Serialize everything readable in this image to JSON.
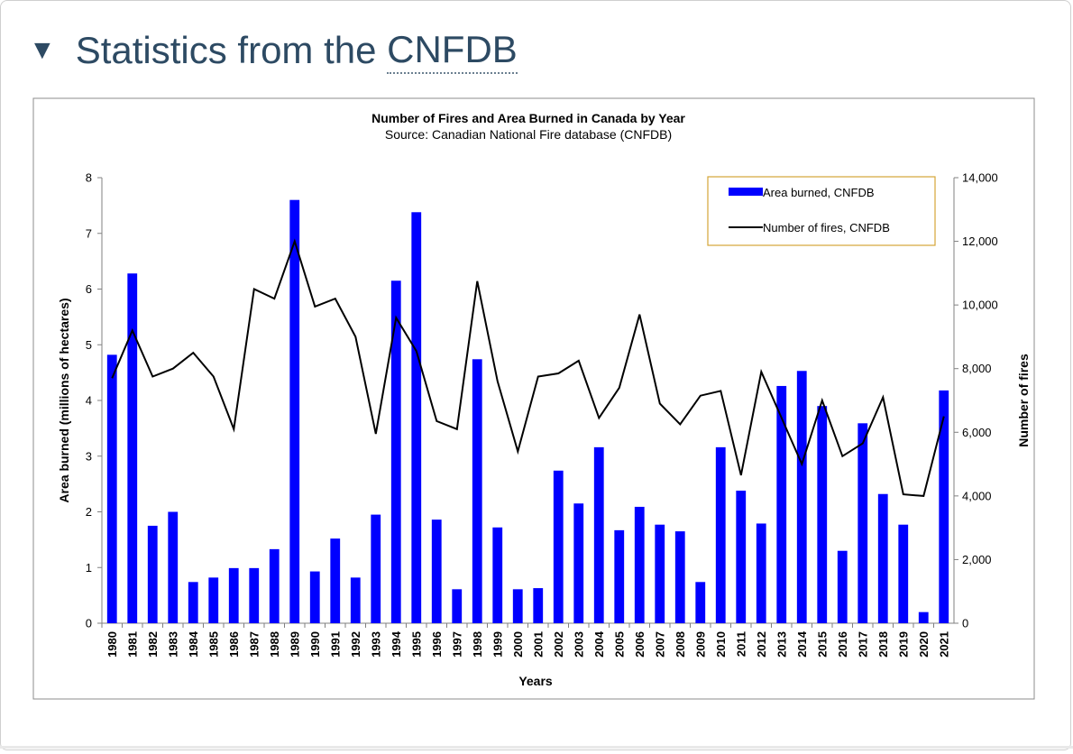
{
  "section": {
    "toggle_icon": "triangle-down-icon",
    "title_prefix": "Statistics from the ",
    "title_link": "CNFDB"
  },
  "chart_data": {
    "type": "bar+line",
    "title": "Number of Fires and Area Burned in Canada by Year",
    "subtitle": "Source: Canadian National Fire database (CNFDB)",
    "xlabel": "Years",
    "ylabel_left": "Area burned (millions of hectares)",
    "ylabel_right": "Number of fires",
    "ylim_left": [
      0,
      8
    ],
    "ylim_right": [
      0,
      14000
    ],
    "left_ticks": [
      "0",
      "1",
      "2",
      "3",
      "4",
      "5",
      "6",
      "7",
      "8"
    ],
    "right_ticks": [
      "0",
      "2,000",
      "4,000",
      "6,000",
      "8,000",
      "10,000",
      "12,000",
      "14,000"
    ],
    "legend_position": "top-right",
    "categories": [
      "1980",
      "1981",
      "1982",
      "1983",
      "1984",
      "1985",
      "1986",
      "1987",
      "1988",
      "1989",
      "1990",
      "1991",
      "1992",
      "1993",
      "1994",
      "1995",
      "1996",
      "1997",
      "1998",
      "1999",
      "2000",
      "2001",
      "2002",
      "2003",
      "2004",
      "2005",
      "2006",
      "2007",
      "2008",
      "2009",
      "2010",
      "2011",
      "2012",
      "2013",
      "2014",
      "2015",
      "2016",
      "2017",
      "2018",
      "2019",
      "2020",
      "2021"
    ],
    "series": [
      {
        "name": "Area burned, CNFDB",
        "type": "bar",
        "axis": "left",
        "color": "#0000ff",
        "values": [
          4.82,
          6.28,
          1.75,
          2.0,
          0.74,
          0.82,
          0.99,
          0.99,
          1.33,
          7.6,
          0.93,
          1.52,
          0.82,
          1.95,
          6.15,
          7.38,
          1.86,
          0.61,
          4.74,
          1.72,
          0.61,
          0.63,
          2.74,
          2.15,
          3.16,
          1.67,
          2.09,
          1.77,
          1.65,
          0.74,
          3.16,
          2.38,
          1.79,
          4.26,
          4.53,
          3.9,
          1.3,
          3.59,
          2.32,
          1.77,
          0.2,
          4.18
        ]
      },
      {
        "name": "Number of fires, CNFDB",
        "type": "line",
        "axis": "right",
        "color": "#000000",
        "values": [
          7700,
          9200,
          7750,
          8000,
          8500,
          7750,
          6100,
          10500,
          10200,
          12000,
          9950,
          10200,
          9000,
          5950,
          9600,
          8550,
          6350,
          6100,
          10750,
          7600,
          5400,
          7750,
          7850,
          8250,
          6450,
          7400,
          9700,
          6900,
          6250,
          7150,
          7300,
          4650,
          7900,
          6450,
          5000,
          7000,
          5250,
          5650,
          7100,
          4050,
          4000,
          6500
        ]
      }
    ]
  }
}
